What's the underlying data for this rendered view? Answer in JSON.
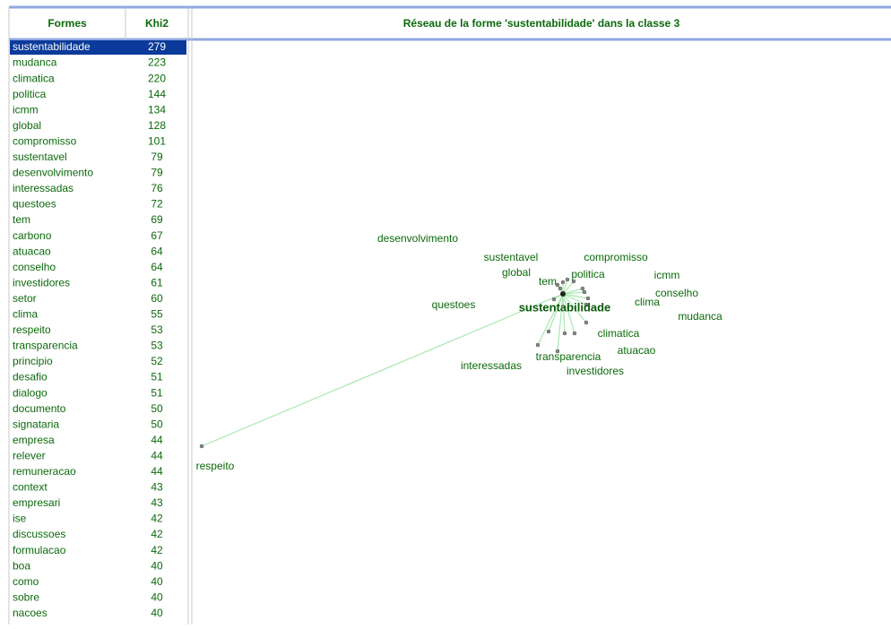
{
  "table": {
    "headers": [
      "Formes",
      "Khi2"
    ],
    "rows": [
      [
        "sustentabilidade",
        279
      ],
      [
        "mudanca",
        223
      ],
      [
        "climatica",
        220
      ],
      [
        "politica",
        144
      ],
      [
        "icmm",
        134
      ],
      [
        "global",
        128
      ],
      [
        "compromisso",
        101
      ],
      [
        "sustentavel",
        79
      ],
      [
        "desenvolvimento",
        79
      ],
      [
        "interessadas",
        76
      ],
      [
        "questoes",
        72
      ],
      [
        "tem",
        69
      ],
      [
        "carbono",
        67
      ],
      [
        "atuacao",
        64
      ],
      [
        "conselho",
        64
      ],
      [
        "investidores",
        61
      ],
      [
        "setor",
        60
      ],
      [
        "clima",
        55
      ],
      [
        "respeito",
        53
      ],
      [
        "transparencia",
        53
      ],
      [
        "principio",
        52
      ],
      [
        "desafio",
        51
      ],
      [
        "dialogo",
        51
      ],
      [
        "documento",
        50
      ],
      [
        "signataria",
        50
      ],
      [
        "empresa",
        44
      ],
      [
        "relever",
        44
      ],
      [
        "remuneracao",
        44
      ],
      [
        "context",
        43
      ],
      [
        "empresari",
        43
      ],
      [
        "ise",
        42
      ],
      [
        "discussoes",
        42
      ],
      [
        "formulacao",
        42
      ],
      [
        "boa",
        40
      ],
      [
        "como",
        40
      ],
      [
        "sobre",
        40
      ],
      [
        "nacoes",
        40
      ]
    ]
  },
  "network": {
    "title": "Réseau de la forme 'sustentabilidade' dans la classe 3",
    "center": "sustentabilidade",
    "nodes": [
      "desenvolvimento",
      "sustentavel",
      "compromisso",
      "global",
      "politica",
      "icmm",
      "tem",
      "conselho",
      "clima",
      "questoes",
      "mudanca",
      "climatica",
      "atuacao",
      "transparencia",
      "interessadas",
      "investidores",
      "respeito"
    ]
  }
}
